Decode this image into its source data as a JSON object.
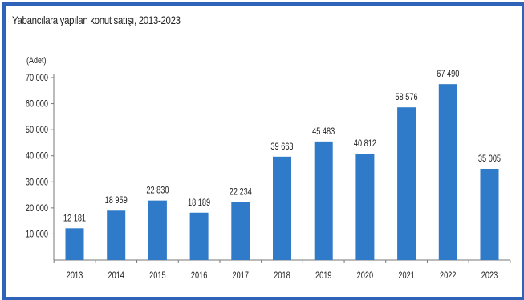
{
  "chart_data": {
    "type": "bar",
    "title": "Yabancılara yapılan konut satışı, 2013-2023",
    "unit_label": "(Adet)",
    "xlabel": "",
    "ylabel": "",
    "categories": [
      "2013",
      "2014",
      "2015",
      "2016",
      "2017",
      "2018",
      "2019",
      "2020",
      "2021",
      "2022",
      "2023"
    ],
    "values": [
      12181,
      18959,
      22830,
      18189,
      22234,
      39663,
      45483,
      40812,
      58576,
      67490,
      35005
    ],
    "value_labels": [
      "12 181",
      "18 959",
      "22 830",
      "18 189",
      "22 234",
      "39 663",
      "45 483",
      "40 812",
      "58 576",
      "67 490",
      "35 005"
    ],
    "yticks": [
      10000,
      20000,
      30000,
      40000,
      50000,
      60000,
      70000
    ],
    "ytick_labels": [
      "10 000",
      "20 000",
      "30 000",
      "40 000",
      "50 000",
      "60 000",
      "70 000"
    ],
    "ylim": [
      0,
      70000
    ],
    "grid": false,
    "legend": "none",
    "bar_color": "#2f7bc9",
    "frame_color": "#2e63b8"
  }
}
